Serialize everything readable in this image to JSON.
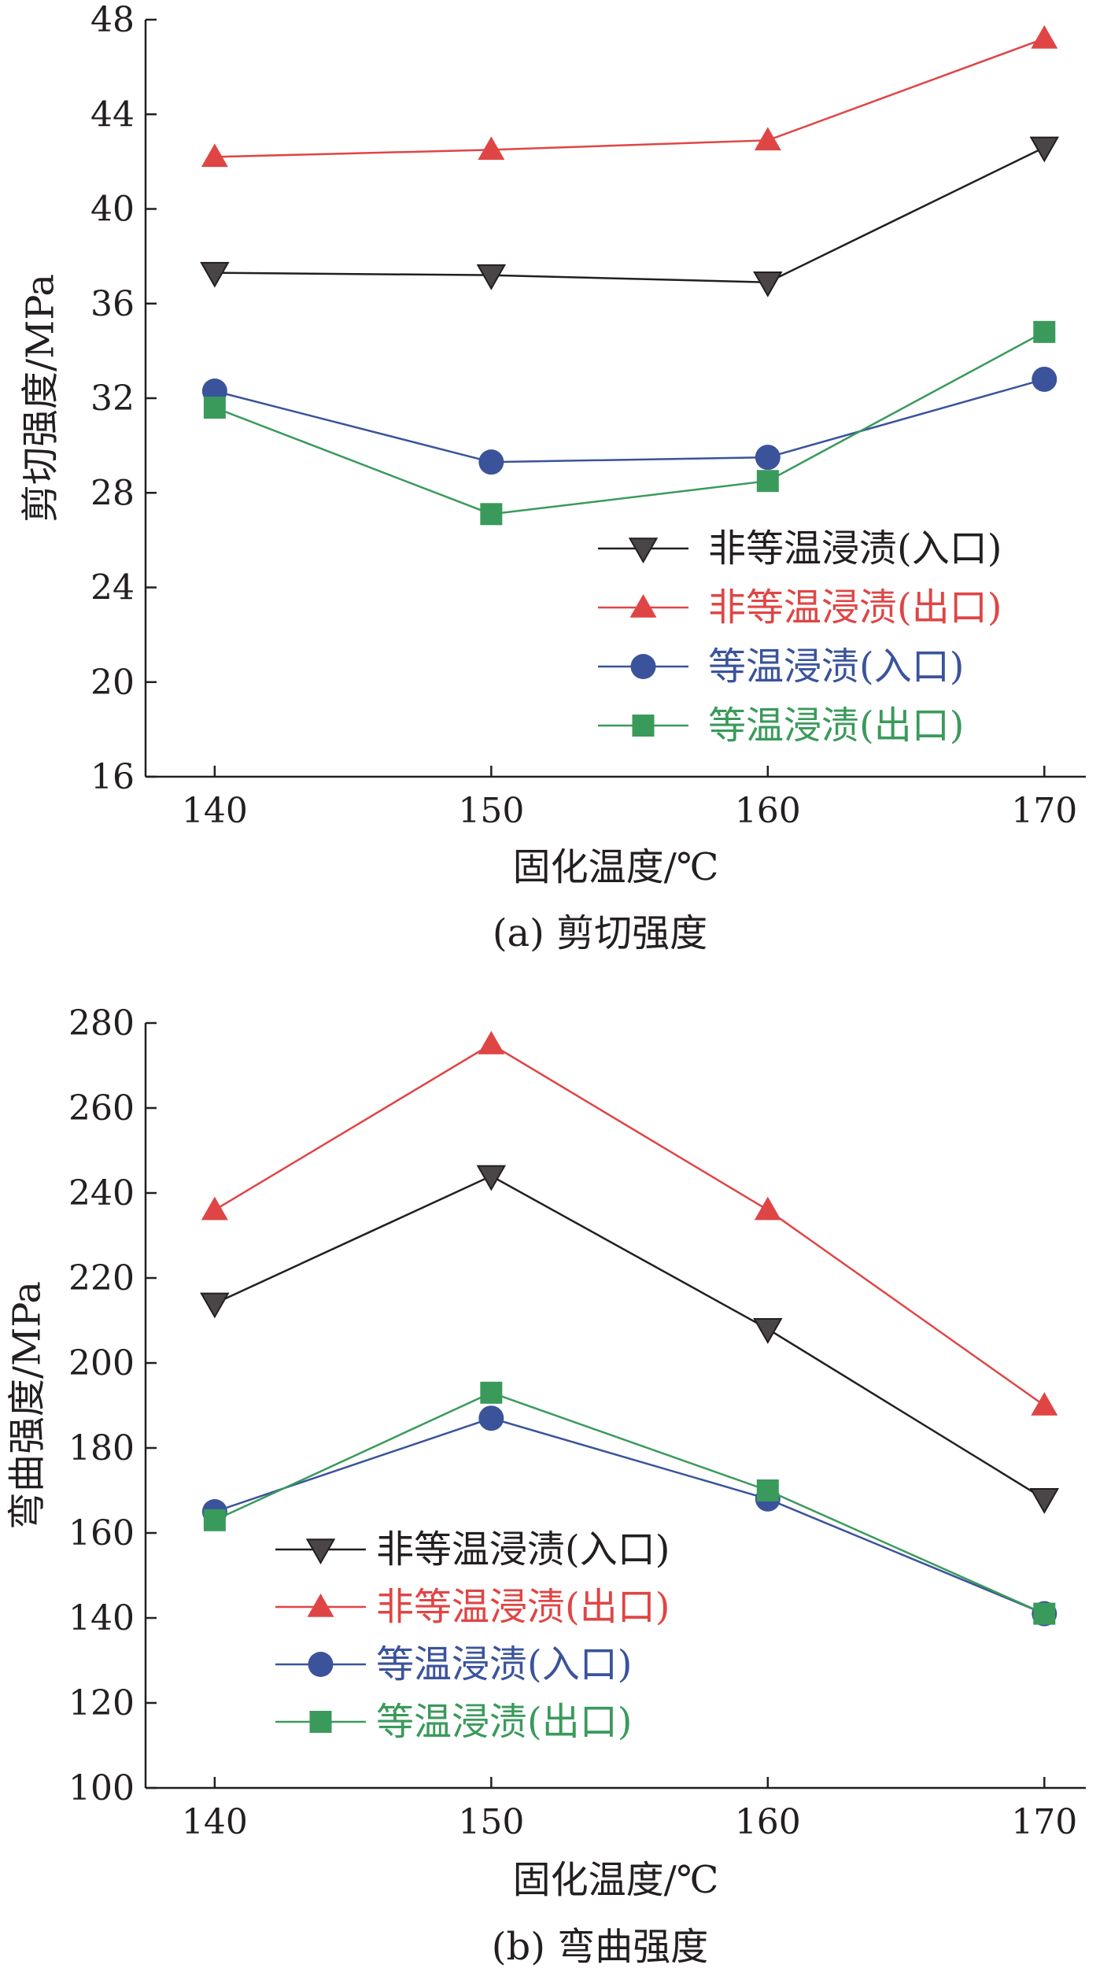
{
  "chart_data": [
    {
      "type": "line",
      "caption": "(a) 剪切强度",
      "xlabel": "固化温度/℃",
      "ylabel": "剪切强度/MPa",
      "x": [
        140,
        150,
        160,
        170
      ],
      "xticks": [
        "140",
        "150",
        "160",
        "170"
      ],
      "yticks": [
        "16",
        "20",
        "24",
        "28",
        "32",
        "36",
        "40",
        "44",
        "48"
      ],
      "xlim": [
        137.5,
        171.5
      ],
      "ylim": [
        16,
        48
      ],
      "grid": false,
      "legend_position": "lower-right",
      "series": [
        {
          "name": "非等温浸渍(入口)",
          "color": "#231f20",
          "marker": "triangle-down",
          "values": [
            37.3,
            37.2,
            36.9,
            42.6
          ]
        },
        {
          "name": "非等温浸渍(出口)",
          "color": "#e04545",
          "marker": "triangle-up",
          "values": [
            42.2,
            42.5,
            42.9,
            47.2
          ]
        },
        {
          "name": "等温浸渍(入口)",
          "color": "#3a539b",
          "marker": "circle",
          "values": [
            32.3,
            29.3,
            29.5,
            32.8
          ]
        },
        {
          "name": "等温浸渍(出口)",
          "color": "#3a9a5b",
          "marker": "square",
          "values": [
            31.6,
            27.1,
            28.5,
            34.8
          ]
        }
      ]
    },
    {
      "type": "line",
      "caption": "(b) 弯曲强度",
      "xlabel": "固化温度/℃",
      "ylabel": "弯曲强度/MPa",
      "x": [
        140,
        150,
        160,
        170
      ],
      "xticks": [
        "140",
        "150",
        "160",
        "170"
      ],
      "yticks": [
        "100",
        "120",
        "140",
        "160",
        "180",
        "200",
        "220",
        "240",
        "260",
        "280"
      ],
      "xlim": [
        137.5,
        171.5
      ],
      "ylim": [
        100,
        280
      ],
      "grid": false,
      "legend_position": "lower-left",
      "series": [
        {
          "name": "非等温浸渍(入口)",
          "color": "#231f20",
          "marker": "triangle-down",
          "values": [
            214,
            244,
            208,
            168
          ]
        },
        {
          "name": "非等温浸渍(出口)",
          "color": "#e04545",
          "marker": "triangle-up",
          "values": [
            236,
            275,
            236,
            190
          ]
        },
        {
          "name": "等温浸渍(入口)",
          "color": "#3a539b",
          "marker": "circle",
          "values": [
            165,
            187,
            168,
            141
          ]
        },
        {
          "name": "等温浸渍(出口)",
          "color": "#3a9a5b",
          "marker": "square",
          "values": [
            163,
            193,
            170,
            141
          ]
        }
      ]
    }
  ]
}
